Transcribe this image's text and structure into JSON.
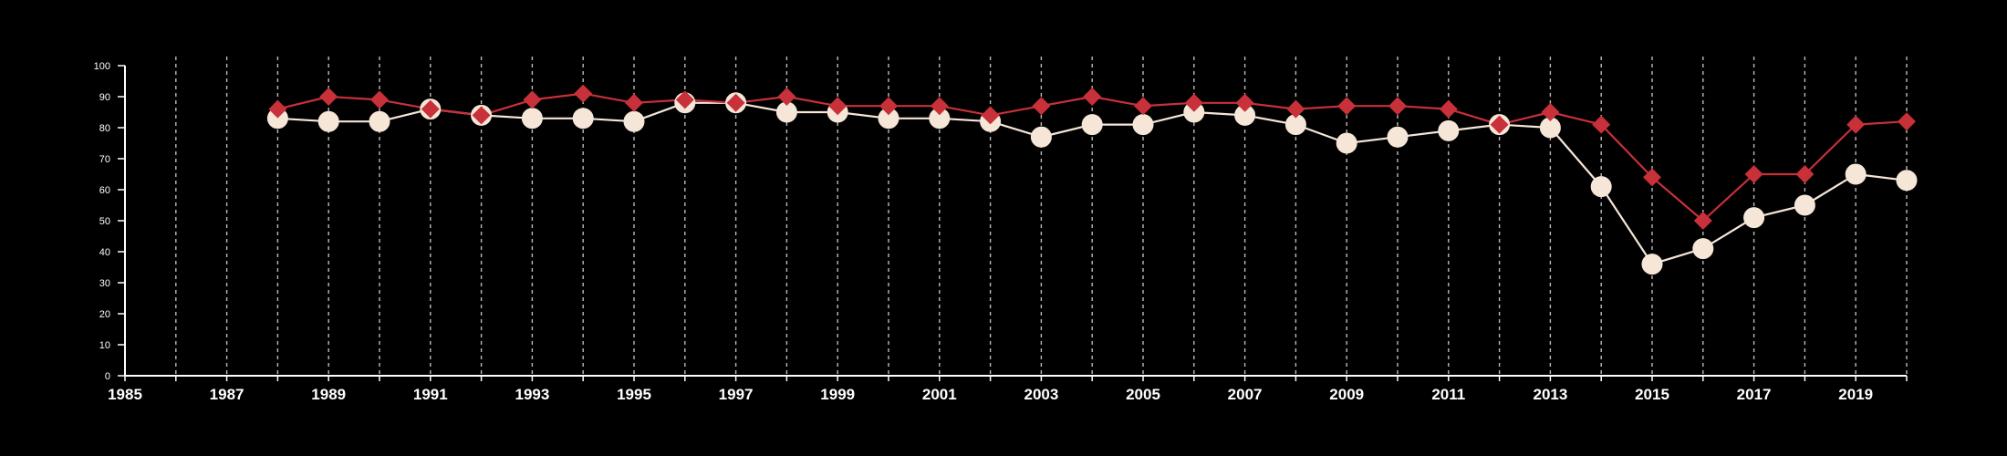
{
  "chart_data": {
    "type": "line",
    "title": "",
    "xlabel": "",
    "ylabel": "",
    "xlim": [
      1985,
      2020
    ],
    "ylim": [
      0,
      100
    ],
    "x_ticks": [
      "1985",
      "1987",
      "1989",
      "1991",
      "1993",
      "1995",
      "1997",
      "1999",
      "2001",
      "2003",
      "2005",
      "2007",
      "2009",
      "2011",
      "2013",
      "2015",
      "2017",
      "2019"
    ],
    "y_ticks": [
      "0",
      "10",
      "20",
      "30",
      "40",
      "50",
      "60",
      "70",
      "80",
      "90",
      "100"
    ],
    "grid": "vertical dashed lines at each year",
    "legend": "none",
    "x": [
      1988,
      1989,
      1990,
      1991,
      1992,
      1993,
      1994,
      1995,
      1996,
      1997,
      1998,
      1999,
      2000,
      2001,
      2002,
      2003,
      2004,
      2005,
      2006,
      2007,
      2008,
      2009,
      2010,
      2011,
      2012,
      2013,
      2014,
      2015,
      2016,
      2017,
      2018,
      2019,
      2020
    ],
    "series": [
      {
        "marker": "diamond",
        "color": "#c8303a",
        "values": [
          86,
          90,
          89,
          86,
          84,
          89,
          91,
          88,
          89,
          88,
          90,
          87,
          87,
          87,
          84,
          87,
          90,
          87,
          88,
          88,
          86,
          87,
          87,
          86,
          81,
          85,
          81,
          64,
          50,
          65,
          65,
          81,
          82
        ]
      },
      {
        "marker": "circle",
        "color": "#f5e6d8",
        "values": [
          83,
          82,
          82,
          86,
          84,
          83,
          83,
          82,
          88,
          88,
          85,
          85,
          83,
          83,
          82,
          77,
          81,
          81,
          85,
          84,
          81,
          75,
          77,
          79,
          81,
          80,
          61,
          36,
          41,
          51,
          55,
          65,
          63
        ]
      }
    ]
  }
}
